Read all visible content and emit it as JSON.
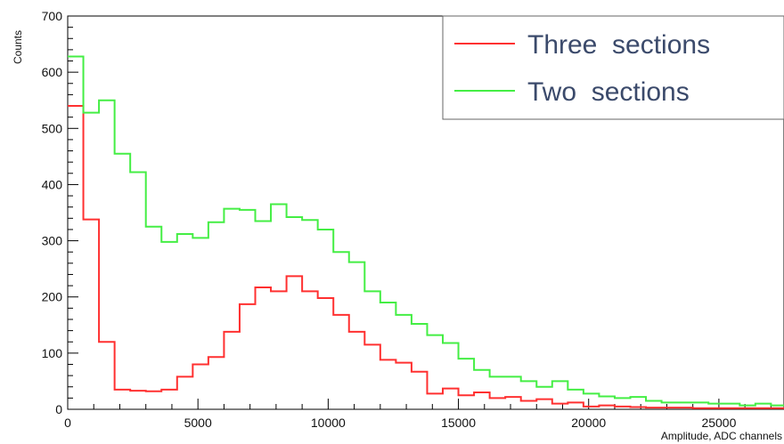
{
  "chart_data": {
    "type": "line",
    "step": true,
    "xlabel": "Amplitude, ADC channels",
    "ylabel": "Counts",
    "xlim": [
      0,
      27500
    ],
    "ylim": [
      0,
      700
    ],
    "x_ticks": [
      0,
      5000,
      10000,
      15000,
      20000,
      25000
    ],
    "y_ticks": [
      0,
      100,
      200,
      300,
      400,
      500,
      600,
      700
    ],
    "x_tick_labels": [
      "0",
      "5000",
      "10000",
      "15000",
      "20000",
      "25000"
    ],
    "y_tick_labels": [
      "0",
      "100",
      "200",
      "300",
      "400",
      "500",
      "600",
      "700"
    ],
    "bin_width": 600,
    "bin_edges_start": 0,
    "legend_position": "top-right",
    "series": [
      {
        "name": "Three  sections",
        "color": "#ff3030",
        "values": [
          540,
          338,
          120,
          35,
          33,
          32,
          35,
          58,
          80,
          93,
          138,
          187,
          217,
          210,
          237,
          210,
          198,
          168,
          138,
          115,
          88,
          83,
          67,
          28,
          37,
          25,
          30,
          20,
          22,
          15,
          18,
          10,
          12,
          5,
          7,
          5,
          4,
          3,
          3,
          3,
          2,
          2,
          2,
          2,
          2,
          2
        ]
      },
      {
        "name": "Two  sections",
        "color": "#44ee44",
        "values": [
          628,
          528,
          550,
          455,
          422,
          325,
          298,
          312,
          305,
          333,
          357,
          355,
          335,
          365,
          342,
          337,
          320,
          280,
          262,
          210,
          190,
          168,
          152,
          132,
          118,
          90,
          70,
          58,
          58,
          50,
          40,
          50,
          35,
          28,
          23,
          20,
          22,
          15,
          12,
          12,
          12,
          10,
          10,
          7,
          10,
          7
        ]
      }
    ]
  }
}
